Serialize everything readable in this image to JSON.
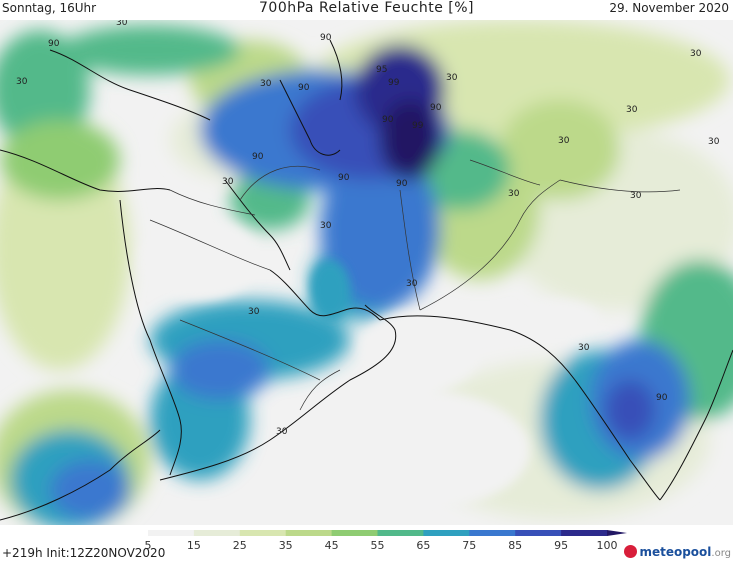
{
  "header": {
    "left": "Sonntag, 16Uhr",
    "title": "700hPa Relative Feuchte [%]",
    "right": "29. November 2020"
  },
  "footer": {
    "left": "+219h  Init:12Z20NOV2020",
    "brand": "meteopool",
    "brand_suffix": ".org"
  },
  "legend": {
    "ticks": [
      "5",
      "15",
      "25",
      "35",
      "45",
      "55",
      "65",
      "75",
      "85",
      "95",
      "100"
    ],
    "colors": [
      "#f2f2f2",
      "#e6ecd8",
      "#d8e6b0",
      "#bcd98a",
      "#8fcc72",
      "#52b98a",
      "#2fa0bf",
      "#3a78cf",
      "#3850b8",
      "#2c2a8c",
      "#221764"
    ]
  },
  "map": {
    "contour_labels": [
      "90",
      "90",
      "95",
      "99",
      "90",
      "90",
      "99",
      "90",
      "90",
      "90",
      "90",
      "30",
      "30",
      "30",
      "30",
      "30",
      "30",
      "30",
      "30",
      "30",
      "30",
      "30",
      "30",
      "30",
      "30",
      "30",
      "30",
      "90"
    ]
  }
}
